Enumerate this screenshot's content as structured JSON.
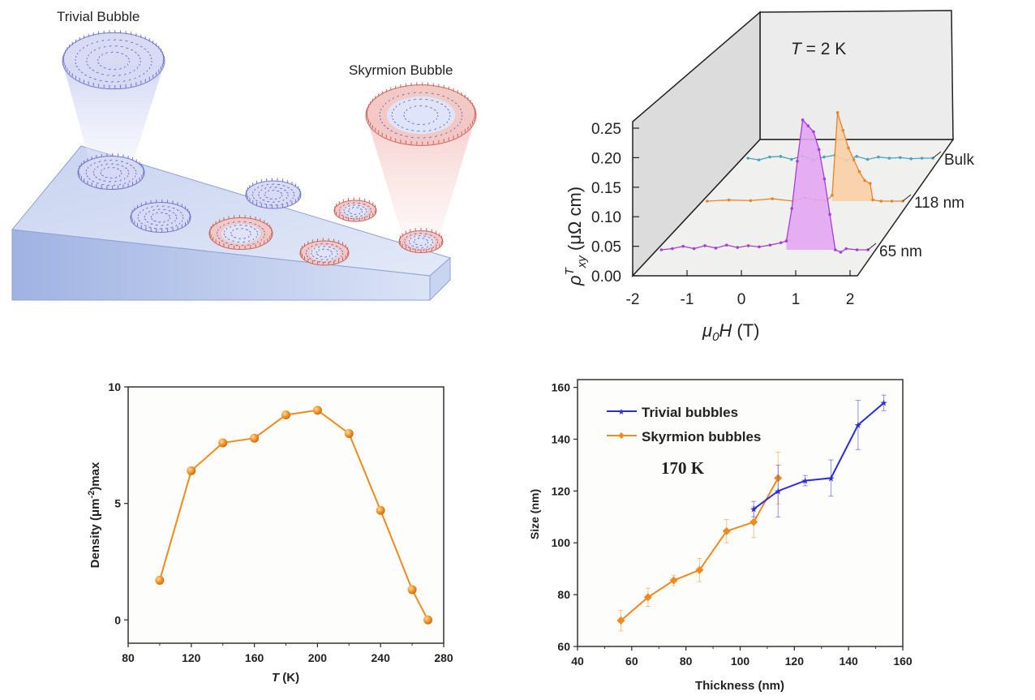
{
  "illustration": {
    "trivial_label": "Trivial Bubble",
    "skyrmion_label": "Skyrmion Bubble",
    "colors": {
      "trivial": "#6f73c9",
      "skyrmion": "#c9605a",
      "slab": "#b9c8ec"
    }
  },
  "chart_data": [
    {
      "type": "line",
      "style": "3d-waterfall",
      "annotation": "T = 2 K",
      "annotation_parts": {
        "var": "T",
        "rest": " = 2 K"
      },
      "ylabel_parts": {
        "base": "ρ",
        "sup": "T",
        "sub": "xy",
        "unit": " (μΩ cm)"
      },
      "xlabel_parts": {
        "base": "μ",
        "sub": "0",
        "var": "H",
        "unit": " (T)"
      },
      "xlim": [
        -2,
        2
      ],
      "ylim": [
        0,
        0.25
      ],
      "xticks": [
        "-2",
        "-1",
        "0",
        "1",
        "2"
      ],
      "yticks": [
        "0.00",
        "0.05",
        "0.10",
        "0.15",
        "0.20",
        "0.25"
      ],
      "series": [
        {
          "name": "65 nm",
          "color": "#a63fd6",
          "fill": "#e3a6f2",
          "x": [
            -1.8,
            -1.6,
            -1.4,
            -1.2,
            -1.0,
            -0.8,
            -0.6,
            -0.4,
            -0.2,
            0,
            0.2,
            0.4,
            0.5,
            0.6,
            0.7,
            0.8,
            0.9,
            1.0,
            1.1,
            1.2,
            1.3,
            1.4,
            1.5,
            1.6,
            1.8,
            2.0
          ],
          "y": [
            0,
            0.002,
            0.006,
            0.002,
            0.007,
            0.003,
            0.008,
            0.004,
            0.007,
            0.005,
            0.008,
            0.012,
            0.015,
            0.07,
            0.15,
            0.22,
            0.21,
            0.2,
            0.17,
            0.12,
            0.06,
            0.0,
            -0.004,
            0.002,
            0,
            0
          ]
        },
        {
          "name": "118 nm",
          "color": "#e8842a",
          "fill": "#f8cfa5",
          "x": [
            -1.6,
            -1.2,
            -0.8,
            -0.4,
            0,
            0.2,
            0.4,
            0.6,
            0.7,
            0.8,
            0.9,
            1.0,
            1.1,
            1.2,
            1.3,
            1.4,
            1.45,
            1.6,
            1.8,
            2.0
          ],
          "y": [
            0,
            0.002,
            0.001,
            0.004,
            0.0,
            0.006,
            0.002,
            0.001,
            0.01,
            0.15,
            0.12,
            0.09,
            0.07,
            0.05,
            0.035,
            0.03,
            0.002,
            0.0,
            0,
            0
          ]
        },
        {
          "name": "Bulk",
          "color": "#4aa3c0",
          "fill": "none",
          "x": [
            -1.4,
            -1.2,
            -1.0,
            -0.8,
            -0.6,
            -0.4,
            -0.2,
            0,
            0.2,
            0.4,
            0.6,
            0.8,
            1.0,
            1.2,
            1.4,
            1.6,
            1.8,
            2.0
          ],
          "y": [
            0,
            -0.003,
            0.002,
            0.003,
            -0.002,
            0.004,
            -0.003,
            0.002,
            0.005,
            -0.004,
            0.003,
            -0.002,
            0.002,
            0.0,
            0.001,
            -0.001,
            0,
            0
          ]
        }
      ]
    },
    {
      "type": "line",
      "xlabel_parts": {
        "var": "T",
        "unit": " (K)"
      },
      "ylabel_parts": {
        "main": "Density (μm",
        "sup": "-2",
        "rest": ")max"
      },
      "xlim": [
        80,
        280
      ],
      "ylim": [
        -1,
        10
      ],
      "xticks": [
        80,
        120,
        160,
        200,
        240,
        280
      ],
      "yticks": [
        0,
        5,
        10
      ],
      "color": "#f08a1c",
      "x": [
        100,
        120,
        140,
        160,
        180,
        200,
        220,
        240,
        260,
        270
      ],
      "y": [
        1.7,
        6.4,
        7.6,
        7.8,
        8.8,
        9.0,
        8.0,
        4.7,
        1.3,
        0.0
      ]
    },
    {
      "type": "line",
      "xlabel": "Thickness (nm)",
      "ylabel": "Size (nm)",
      "annotation": "170 K",
      "legend": "top-left",
      "xlim": [
        40,
        160
      ],
      "ylim": [
        60,
        163
      ],
      "xticks": [
        40,
        60,
        80,
        100,
        120,
        140,
        160
      ],
      "yticks": [
        60,
        80,
        100,
        120,
        140,
        160
      ],
      "series": [
        {
          "name": "Trivial bubbles",
          "color": "#2b2be0",
          "marker": "star",
          "x": [
            105,
            114,
            124,
            133.5,
            143.5,
            153
          ],
          "y": [
            113,
            120,
            124,
            125,
            145.5,
            154
          ],
          "err": [
            3,
            10,
            2,
            7,
            9.5,
            3
          ]
        },
        {
          "name": "Skyrmion bubbles",
          "color": "#ef8a1e",
          "marker": "diamond",
          "x": [
            56,
            66,
            75.5,
            85,
            95,
            105,
            114
          ],
          "y": [
            70,
            79,
            85.5,
            89.5,
            104.5,
            108,
            125
          ],
          "err": [
            4,
            3.5,
            2,
            4.5,
            4.5,
            6,
            10
          ]
        }
      ]
    }
  ]
}
